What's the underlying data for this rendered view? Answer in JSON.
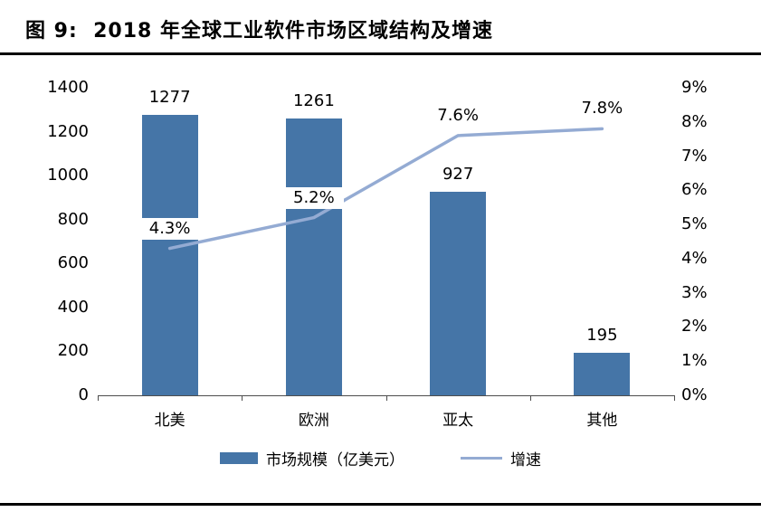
{
  "chart_data": {
    "type": "bar+line",
    "title": "图 9:  2018 年全球工业软件市场区域结构及增速",
    "categories": [
      "北美",
      "欧洲",
      "亚太",
      "其他"
    ],
    "series": [
      {
        "name": "市场规模（亿美元）",
        "type": "bar",
        "axis": "left",
        "values": [
          1277,
          1261,
          927,
          195
        ],
        "color": "#4575A7"
      },
      {
        "name": "增速",
        "type": "line",
        "axis": "right",
        "values": [
          4.3,
          5.2,
          7.6,
          7.8
        ],
        "labels": [
          "4.3%",
          "5.2%",
          "7.6%",
          "7.8%"
        ],
        "color": "#94ABD3"
      }
    ],
    "left_axis": {
      "min": 0,
      "max": 1400,
      "step": 200,
      "ticks": [
        "0",
        "200",
        "400",
        "600",
        "800",
        "1000",
        "1200",
        "1400"
      ]
    },
    "right_axis": {
      "min": 0,
      "max": 9,
      "step": 1,
      "unit": "%",
      "ticks": [
        "0%",
        "1%",
        "2%",
        "3%",
        "4%",
        "5%",
        "6%",
        "7%",
        "8%",
        "9%"
      ]
    },
    "grid": false,
    "legend_position": "bottom"
  }
}
